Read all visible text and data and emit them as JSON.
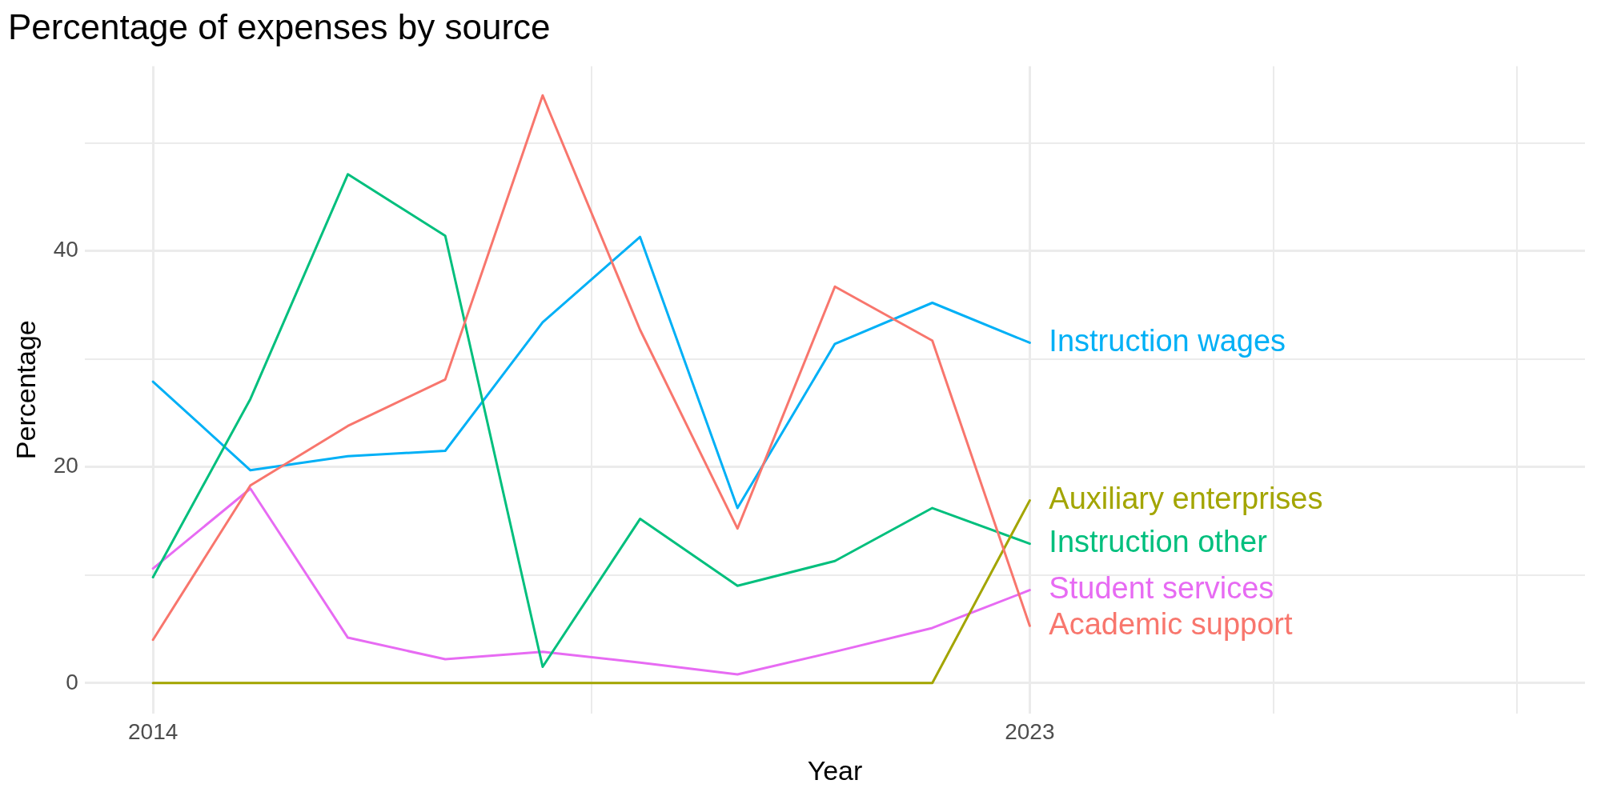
{
  "chart_data": {
    "type": "line",
    "title": "Percentage of expenses by source",
    "xlabel": "Year",
    "ylabel": "Percentage",
    "x": [
      2014,
      2015,
      2016,
      2017,
      2018,
      2019,
      2020,
      2021,
      2022,
      2023
    ],
    "series": [
      {
        "name": "Academic support",
        "color": "#f8766d",
        "values": [
          4.0,
          18.3,
          23.8,
          28.1,
          54.4,
          32.7,
          14.3,
          36.7,
          31.7,
          5.3
        ]
      },
      {
        "name": "Auxiliary enterprises",
        "color": "#a3a500",
        "values": [
          0,
          0,
          0,
          0,
          0,
          0,
          0,
          0,
          0,
          16.9
        ]
      },
      {
        "name": "Instruction other",
        "color": "#00bf7d",
        "values": [
          9.8,
          26.3,
          47.1,
          41.4,
          1.5,
          15.2,
          9.0,
          11.3,
          16.2,
          12.9
        ]
      },
      {
        "name": "Instruction wages",
        "color": "#00b0f6",
        "values": [
          27.9,
          19.7,
          21.0,
          21.5,
          33.4,
          41.3,
          16.2,
          31.4,
          35.2,
          31.5
        ]
      },
      {
        "name": "Student services",
        "color": "#e76bf3",
        "values": [
          10.6,
          18.0,
          4.2,
          2.2,
          2.9,
          1.9,
          0.8,
          2.9,
          5.1,
          8.6
        ]
      }
    ],
    "xlim": [
      2013.3,
      2028.7
    ],
    "xticks": [
      2014,
      {
        "value": 2018.5,
        "label": null
      },
      2023,
      {
        "value": 2025.5,
        "label": null
      },
      {
        "value": 2028,
        "label": null
      }
    ],
    "ylim": [
      -2.8,
      57.1
    ],
    "yticks": [
      0,
      {
        "value": 10,
        "label": null
      },
      20,
      {
        "value": 30,
        "label": null
      },
      40,
      {
        "value": 50,
        "label": null
      }
    ],
    "grid": true,
    "legend": false,
    "marker": "none",
    "line_style": "solid"
  }
}
